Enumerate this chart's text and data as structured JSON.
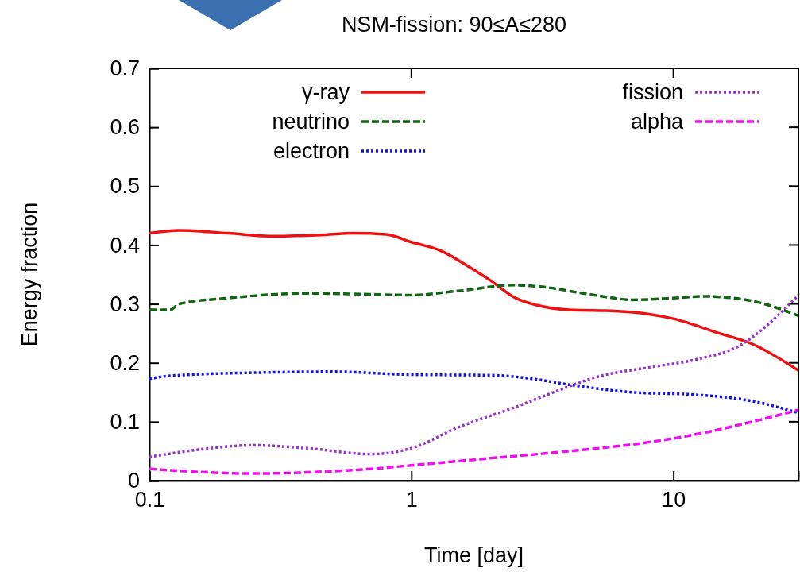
{
  "chart_data": {
    "type": "line",
    "title": "NSM-fission: 90≤A≤280",
    "xlabel": "Time [day]",
    "ylabel": "Energy fraction",
    "log": "x",
    "xlim": [
      0.1,
      30
    ],
    "xticks": [
      0.1,
      1,
      10
    ],
    "ylim": [
      0,
      0.7
    ],
    "yticks": [
      0,
      0.1,
      0.2,
      0.3,
      0.4,
      0.5,
      0.6,
      0.7
    ],
    "grid": false,
    "legend": "top right",
    "marker": "none",
    "series": [
      {
        "name": "γ-ray",
        "color": "#ee1111",
        "line_style": "solid",
        "x": [
          0.1,
          0.13,
          0.2,
          0.3,
          0.45,
          0.6,
          0.8,
          1,
          1.3,
          1.7,
          2,
          2.5,
          3,
          4,
          6,
          8,
          10,
          15,
          20,
          30
        ],
        "values": [
          0.42,
          0.425,
          0.42,
          0.415,
          0.417,
          0.42,
          0.418,
          0.405,
          0.39,
          0.36,
          0.34,
          0.31,
          0.298,
          0.29,
          0.288,
          0.283,
          0.275,
          0.25,
          0.232,
          0.187
        ]
      },
      {
        "name": "neutrino",
        "color": "#126612",
        "line_style": "dashed",
        "x": [
          0.1,
          0.12,
          0.13,
          0.2,
          0.4,
          0.6,
          1,
          1.5,
          2.5,
          3,
          5,
          7,
          10,
          13,
          20,
          30
        ],
        "values": [
          0.29,
          0.29,
          0.3,
          0.31,
          0.318,
          0.317,
          0.315,
          0.322,
          0.332,
          0.33,
          0.315,
          0.307,
          0.31,
          0.313,
          0.305,
          0.28
        ]
      },
      {
        "name": "electron",
        "color": "#1111ee",
        "line_style": "dotted",
        "x": [
          0.1,
          0.12,
          0.3,
          0.5,
          1,
          2,
          3,
          4,
          7,
          12,
          20,
          30
        ],
        "values": [
          0.173,
          0.178,
          0.184,
          0.185,
          0.18,
          0.179,
          0.172,
          0.163,
          0.15,
          0.146,
          0.135,
          0.115
        ]
      },
      {
        "name": "fission",
        "color": "#9933cc",
        "line_style": "dotted",
        "x": [
          0.1,
          0.15,
          0.25,
          0.4,
          0.7,
          1,
          1.5,
          2.5,
          4,
          5,
          8,
          12,
          18,
          25,
          30
        ],
        "values": [
          0.04,
          0.052,
          0.06,
          0.055,
          0.045,
          0.055,
          0.09,
          0.125,
          0.16,
          0.175,
          0.192,
          0.205,
          0.23,
          0.28,
          0.315
        ]
      },
      {
        "name": "alpha",
        "color": "#ee11ee",
        "line_style": "dashed",
        "x": [
          0.1,
          0.15,
          0.25,
          0.4,
          0.7,
          1,
          2,
          4,
          8,
          12,
          20,
          30
        ],
        "values": [
          0.02,
          0.015,
          0.012,
          0.014,
          0.02,
          0.026,
          0.038,
          0.05,
          0.065,
          0.078,
          0.1,
          0.12
        ]
      }
    ]
  }
}
